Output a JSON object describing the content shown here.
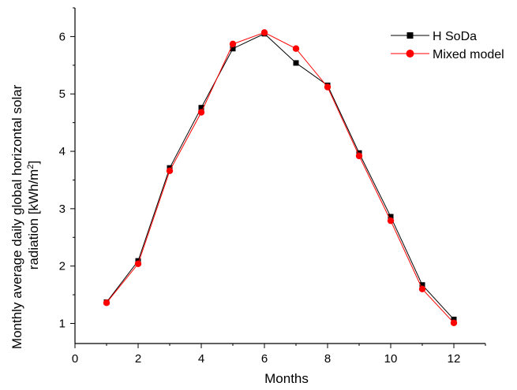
{
  "chart_data": {
    "type": "line",
    "title": "",
    "xlabel": "Months",
    "ylabel_line1": "Monthly average daily global horizontal solar",
    "ylabel_line2_prefix": "radiation  [kWh/m",
    "ylabel_line2_sup": "2",
    "ylabel_line2_suffix": "]",
    "xlim": [
      0,
      13
    ],
    "ylim": [
      0.65,
      6.5
    ],
    "xticks": [
      0,
      2,
      4,
      6,
      8,
      10,
      12
    ],
    "yticks": [
      1,
      2,
      3,
      4,
      5,
      6
    ],
    "grid": false,
    "legend_position": "top-right",
    "series": [
      {
        "name": "H SoDa",
        "color": "#000000",
        "marker": "square",
        "x": [
          1,
          2,
          3,
          4,
          5,
          6,
          7,
          8,
          9,
          10,
          11,
          12
        ],
        "y": [
          1.37,
          2.09,
          3.71,
          4.76,
          5.79,
          6.05,
          5.54,
          5.15,
          3.97,
          2.86,
          1.67,
          1.07
        ]
      },
      {
        "name": "Mixed model",
        "color": "#ff0000",
        "marker": "circle",
        "x": [
          1,
          2,
          3,
          4,
          5,
          6,
          7,
          8,
          9,
          10,
          11,
          12
        ],
        "y": [
          1.36,
          2.04,
          3.66,
          4.68,
          5.87,
          6.07,
          5.79,
          5.12,
          3.92,
          2.79,
          1.6,
          1.01
        ]
      }
    ]
  }
}
